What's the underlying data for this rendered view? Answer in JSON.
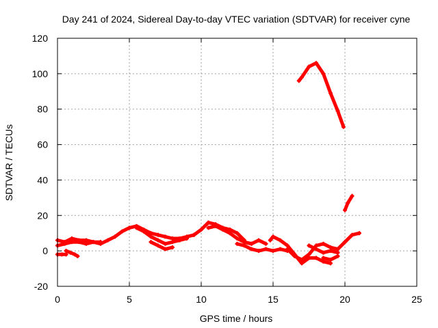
{
  "chart_data": {
    "type": "line",
    "title": "Day 241 of 2024, Sidereal Day-to-day VTEC variation (SDTVAR) for receiver cyne",
    "xlabel": "GPS time / hours",
    "ylabel": "SDTVAR / TECUs",
    "xlim": [
      0,
      25
    ],
    "ylim": [
      -20,
      120
    ],
    "xticks": [
      0,
      5,
      10,
      15,
      20,
      25
    ],
    "yticks": [
      -20,
      0,
      20,
      40,
      60,
      80,
      100,
      120
    ],
    "xtick_labels": [
      "0",
      "5",
      "10",
      "15",
      "20",
      "25"
    ],
    "ytick_labels": [
      "-20",
      "0",
      "20",
      "40",
      "60",
      "80",
      "100",
      "120"
    ],
    "grid": true,
    "color": "#ff0000",
    "series": [
      {
        "name": "track-1",
        "x": [
          0.0,
          0.5,
          1.0,
          1.5,
          2.0,
          2.5,
          3.0,
          3.5,
          4.0,
          4.5,
          5.0,
          5.5,
          6.0,
          6.5,
          7.0,
          7.5,
          8.0,
          8.5,
          9.0,
          9.5
        ],
        "y": [
          3,
          4,
          5,
          5,
          4,
          5,
          4,
          6,
          8,
          11,
          13,
          14,
          12,
          10,
          9,
          8,
          7,
          7,
          8,
          9
        ]
      },
      {
        "name": "track-2",
        "x": [
          0.0,
          0.5,
          1.0,
          1.5,
          2.0,
          2.5,
          3.0
        ],
        "y": [
          6,
          5,
          7,
          6,
          6,
          5,
          5
        ]
      },
      {
        "name": "track-3",
        "x": [
          0.0,
          0.3,
          0.6
        ],
        "y": [
          -2,
          -2,
          -2
        ]
      },
      {
        "name": "track-4",
        "x": [
          0.6,
          0.9,
          1.2,
          1.4
        ],
        "y": [
          0,
          -1,
          -2,
          -3
        ]
      },
      {
        "name": "track-5",
        "x": [
          5.5,
          6.0,
          6.5,
          7.0,
          7.5,
          8.0,
          8.5,
          9.0
        ],
        "y": [
          13,
          11,
          8,
          6,
          4,
          5,
          6,
          7
        ]
      },
      {
        "name": "track-6",
        "x": [
          6.5,
          7.0,
          7.5,
          8.0
        ],
        "y": [
          5,
          3,
          1,
          2
        ]
      },
      {
        "name": "track-7",
        "x": [
          9.5,
          10.0,
          10.5,
          11.0,
          11.5,
          12.0,
          12.5,
          13.0
        ],
        "y": [
          9,
          12,
          16,
          15,
          13,
          12,
          10,
          6
        ]
      },
      {
        "name": "track-8",
        "x": [
          10.5,
          11.0,
          11.5,
          12.0,
          12.5,
          13.0,
          13.5
        ],
        "y": [
          13,
          14,
          12,
          10,
          7,
          5,
          4
        ]
      },
      {
        "name": "track-9",
        "x": [
          12.5,
          13.0,
          13.5,
          14.0,
          14.5,
          15.0,
          15.5,
          16.0
        ],
        "y": [
          4,
          3,
          1,
          0,
          1,
          0,
          1,
          0
        ]
      },
      {
        "name": "track-10",
        "x": [
          13.0,
          13.5,
          14.0,
          14.5
        ],
        "y": [
          5,
          4,
          6,
          4
        ]
      },
      {
        "name": "track-11",
        "x": [
          14.8,
          15.0,
          15.5,
          16.0,
          16.5,
          17.0,
          17.5,
          18.0,
          18.5,
          19.0
        ],
        "y": [
          6,
          8,
          6,
          3,
          -2,
          -7,
          -4,
          -4,
          -6,
          -7
        ]
      },
      {
        "name": "track-12",
        "x": [
          16.0,
          16.5,
          17.0,
          17.5,
          18.0,
          18.5,
          19.0,
          19.5,
          20.0,
          20.5,
          21.0
        ],
        "y": [
          1,
          -3,
          -5,
          -2,
          3,
          4,
          2,
          1,
          5,
          9,
          10
        ]
      },
      {
        "name": "track-13",
        "x": [
          17.5,
          18.0,
          18.5,
          19.0,
          19.5
        ],
        "y": [
          3,
          1,
          -1,
          0,
          -1
        ]
      },
      {
        "name": "track-14",
        "x": [
          18.5,
          19.0,
          19.5
        ],
        "y": [
          -4,
          -5,
          -3
        ]
      },
      {
        "name": "track-15",
        "x": [
          16.8,
          17.0,
          17.5,
          18.0,
          18.5,
          19.0,
          19.5,
          19.9
        ],
        "y": [
          96,
          98,
          104,
          106,
          100,
          89,
          79,
          70
        ]
      },
      {
        "name": "track-16",
        "x": [
          20.0,
          20.2,
          20.5
        ],
        "y": [
          23,
          27,
          31
        ]
      }
    ]
  }
}
